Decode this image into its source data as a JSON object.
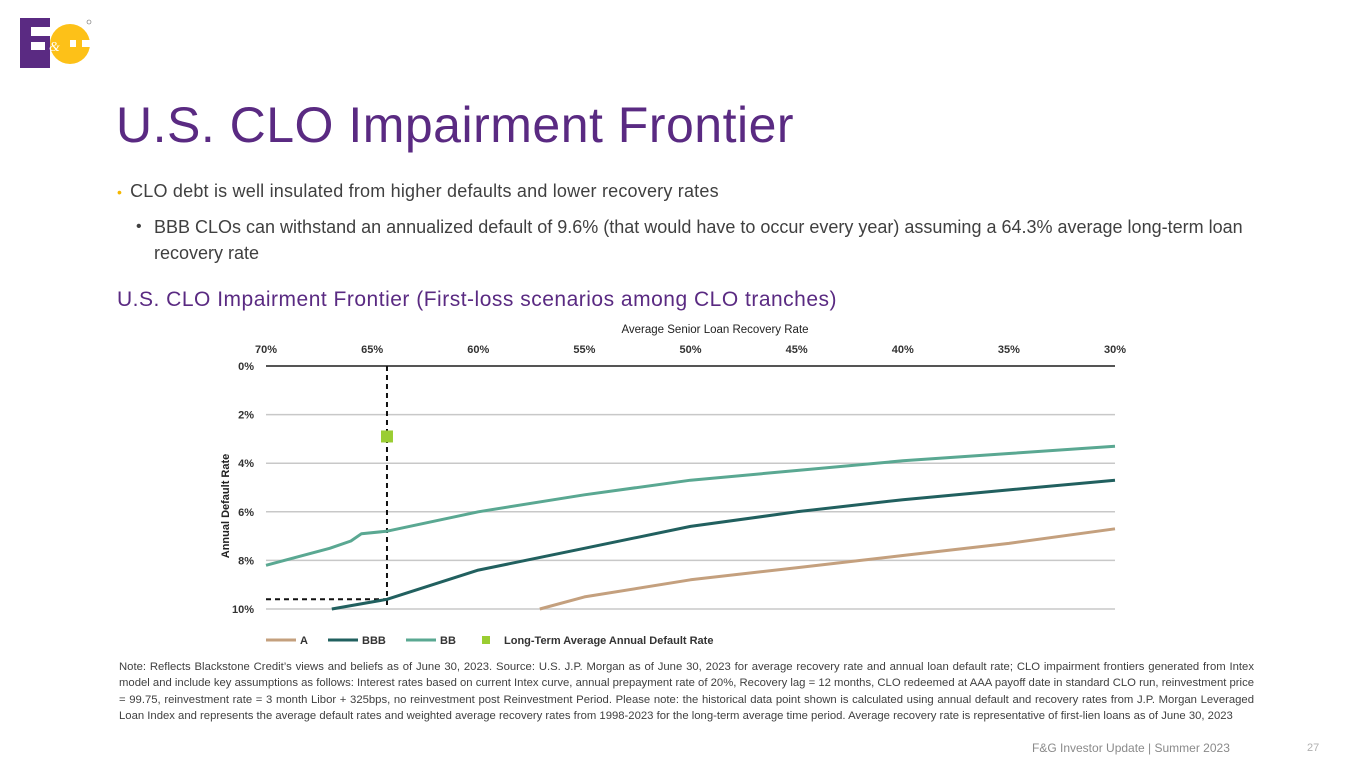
{
  "brand": {
    "purple": "#5a2a82",
    "gold": "#fdc118",
    "logo_text": "F&G"
  },
  "title": "U.S. CLO Impairment Frontier",
  "bullets": [
    {
      "text": "CLO debt is well insulated from higher defaults and lower recovery rates"
    },
    {
      "text": "BBB CLOs can withstand an annualized default of 9.6% (that would have to occur every year) assuming a 64.3% average long-term loan recovery rate"
    }
  ],
  "chart_heading": "U.S. CLO Impairment Frontier (First-loss scenarios among CLO tranches)",
  "chart_data": {
    "type": "line",
    "title": "Average Senior Loan Recovery Rate",
    "xlabel": "Average Senior Loan Recovery Rate",
    "ylabel": "Annual Default Rate",
    "x_ticks": [
      "70%",
      "65%",
      "60%",
      "55%",
      "50%",
      "45%",
      "40%",
      "35%",
      "30%"
    ],
    "x_tick_values": [
      70,
      65,
      60,
      55,
      50,
      45,
      40,
      35,
      30
    ],
    "xlim": [
      70,
      30
    ],
    "y_ticks": [
      "0%",
      "2%",
      "4%",
      "6%",
      "8%",
      "10%"
    ],
    "y_tick_values": [
      0,
      2,
      4,
      6,
      8,
      10
    ],
    "ylim": [
      0,
      10
    ],
    "x_axis_position": "top",
    "y_axis_inverted": true,
    "series": [
      {
        "name": "A",
        "color": "#c4a07e",
        "points": [
          [
            57.1,
            10.0
          ],
          [
            55,
            9.5
          ],
          [
            50,
            8.8
          ],
          [
            45,
            8.3
          ],
          [
            40,
            7.8
          ],
          [
            35,
            7.3
          ],
          [
            30,
            6.7
          ]
        ]
      },
      {
        "name": "BBB",
        "color": "#21605f",
        "points": [
          [
            66.9,
            10.0
          ],
          [
            64.3,
            9.6
          ],
          [
            60,
            8.4
          ],
          [
            55,
            7.5
          ],
          [
            50,
            6.6
          ],
          [
            45,
            6.0
          ],
          [
            40,
            5.5
          ],
          [
            35,
            5.1
          ],
          [
            30,
            4.7
          ]
        ]
      },
      {
        "name": "BB",
        "color": "#5aa892",
        "points": [
          [
            70,
            8.2
          ],
          [
            67,
            7.5
          ],
          [
            66,
            7.2
          ],
          [
            65.5,
            6.9
          ],
          [
            64.3,
            6.8
          ],
          [
            60,
            6.0
          ],
          [
            55,
            5.3
          ],
          [
            50,
            4.7
          ],
          [
            45,
            4.3
          ],
          [
            40,
            3.9
          ],
          [
            35,
            3.6
          ],
          [
            30,
            3.3
          ]
        ]
      }
    ],
    "highlight_point": {
      "name": "Long-Term Average Annual Default Rate",
      "x": 64.3,
      "y": 2.9,
      "color": "#9acd32"
    },
    "reference_lines": {
      "x": 64.3,
      "y": 9.6
    },
    "legend": [
      {
        "label": "A",
        "kind": "line",
        "color": "#c4a07e"
      },
      {
        "label": "BBB",
        "kind": "line",
        "color": "#21605f"
      },
      {
        "label": "BB",
        "kind": "line",
        "color": "#5aa892"
      },
      {
        "label": "Long-Term Average Annual Default Rate",
        "kind": "marker",
        "color": "#9acd32"
      }
    ],
    "legend_placement": "bottom",
    "grid": true
  },
  "note": "Note: Reflects Blackstone Credit’s views and beliefs as of June 30, 2023. Source: U.S. J.P. Morgan as of June 30, 2023 for average recovery rate and annual loan default rate; CLO impairment frontiers generated from Intex model and include key assumptions as follows: Interest rates based on current Intex curve, annual prepayment rate of 20%, Recovery lag = 12 months, CLO redeemed at AAA payoff date in standard CLO run, reinvestment price = 99.75, reinvestment rate = 3 month Libor + 325bps, no reinvestment post Reinvestment Period. Please note: the historical data point shown is calculated using annual default and recovery rates from J.P. Morgan Leveraged Loan Index and represents the average default rates and weighted average recovery rates from 1998-2023 for the long-term average time period. Average recovery rate is representative of first-lien loans as of June 30, 2023",
  "footer": "F&G Investor Update | Summer 2023",
  "page_number": "27"
}
